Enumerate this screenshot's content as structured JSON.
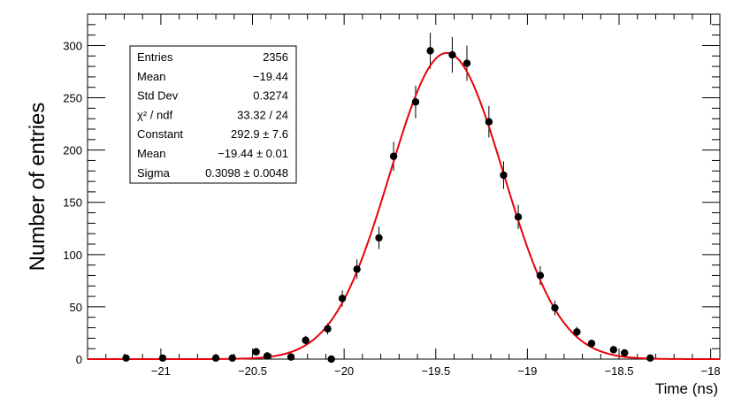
{
  "chart_data": {
    "type": "scatter",
    "title": "",
    "xlabel": "Time (ns)",
    "ylabel": "Number of entries",
    "xlim": [
      -21.4,
      -17.95
    ],
    "ylim": [
      0,
      330
    ],
    "x_ticks": [
      {
        "value": -21,
        "label": "−21"
      },
      {
        "value": -20.5,
        "label": "−20.5"
      },
      {
        "value": -20,
        "label": "−20"
      },
      {
        "value": -19.5,
        "label": "−19.5"
      },
      {
        "value": -19,
        "label": "−19"
      },
      {
        "value": -18.5,
        "label": "−18.5"
      },
      {
        "value": -18,
        "label": "−18"
      }
    ],
    "y_ticks": [
      {
        "value": 0,
        "label": "0"
      },
      {
        "value": 50,
        "label": "50"
      },
      {
        "value": 100,
        "label": "100"
      },
      {
        "value": 150,
        "label": "150"
      },
      {
        "value": 200,
        "label": "200"
      },
      {
        "value": 250,
        "label": "250"
      },
      {
        "value": 300,
        "label": "300"
      }
    ],
    "colors": {
      "points": "#000000",
      "fit": "#e8000b"
    },
    "points": [
      {
        "x": -21.19,
        "y": 1
      },
      {
        "x": -20.99,
        "y": 1
      },
      {
        "x": -20.7,
        "y": 1
      },
      {
        "x": -20.61,
        "y": 1
      },
      {
        "x": -20.48,
        "y": 7
      },
      {
        "x": -20.42,
        "y": 3
      },
      {
        "x": -20.29,
        "y": 2
      },
      {
        "x": -20.21,
        "y": 18
      },
      {
        "x": -20.09,
        "y": 29
      },
      {
        "x": -20.07,
        "y": 0
      },
      {
        "x": -20.01,
        "y": 58
      },
      {
        "x": -19.93,
        "y": 86
      },
      {
        "x": -19.81,
        "y": 116
      },
      {
        "x": -19.73,
        "y": 194
      },
      {
        "x": -19.61,
        "y": 246
      },
      {
        "x": -19.53,
        "y": 295
      },
      {
        "x": -19.41,
        "y": 291
      },
      {
        "x": -19.33,
        "y": 283
      },
      {
        "x": -19.21,
        "y": 227
      },
      {
        "x": -19.13,
        "y": 176
      },
      {
        "x": -19.05,
        "y": 136
      },
      {
        "x": -18.93,
        "y": 80
      },
      {
        "x": -18.85,
        "y": 49
      },
      {
        "x": -18.73,
        "y": 26
      },
      {
        "x": -18.65,
        "y": 15
      },
      {
        "x": -18.53,
        "y": 9
      },
      {
        "x": -18.47,
        "y": 6
      },
      {
        "x": -18.33,
        "y": 1
      }
    ],
    "fit": {
      "function": "gaus",
      "constant": 292.9,
      "mean": -19.44,
      "sigma": 0.3098
    }
  },
  "stats_box": [
    {
      "label": "Entries",
      "value": "2356"
    },
    {
      "label": "Mean",
      "value": "−19.44"
    },
    {
      "label": "Std Dev",
      "value": "0.3274"
    },
    {
      "label": "χ² / ndf",
      "value": "33.32 / 24"
    },
    {
      "label": "Constant",
      "value": "292.9 ± 7.6"
    },
    {
      "label": "Mean",
      "value": "−19.44 ± 0.01"
    },
    {
      "label": "Sigma",
      "value": "0.3098 ± 0.0048"
    }
  ]
}
